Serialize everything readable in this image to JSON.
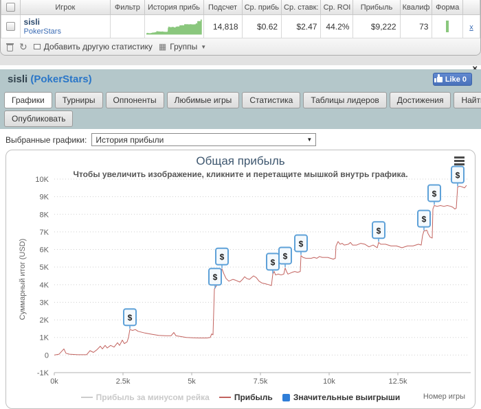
{
  "stats_table": {
    "headers": [
      "",
      "Игрок",
      "Фильтр",
      "История прибь",
      "Подсчет",
      "Ср. прибь",
      "Ср. ставк:",
      "Ср. ROI",
      "Прибыль",
      "Квалиф",
      "Форма",
      ""
    ],
    "row": {
      "player": "sisli",
      "site": "PokerStars",
      "count": "14,818",
      "avg_profit": "$0.62",
      "avg_stake": "$2.47",
      "avg_roi": "44.2%",
      "profit": "$9,222",
      "qualified": "73",
      "remove_label": "x"
    }
  },
  "toolbar": {
    "add_stat_label": "Добавить другую статистику",
    "groups_label": "Группы"
  },
  "icons": {
    "refresh": "↻",
    "groups": "▦",
    "caret_down": "▼",
    "close": "×"
  },
  "panel": {
    "player": "sisli",
    "site_paren": "(PokerStars)",
    "like_label": "Like 0",
    "active_tab": "Графики",
    "tabs_row1": [
      "Графики",
      "Турниры",
      "Оппоненты",
      "Любимые игры",
      "Статистика",
      "Таблицы лидеров",
      "Достижения",
      "Найти"
    ],
    "tabs_row2": [
      "Опубликовать"
    ],
    "select_label": "Выбранные графики:",
    "select_value": "История прибыли"
  },
  "sparkline": {
    "color": "#8ac77d"
  },
  "chart_data": {
    "type": "line",
    "title": "Общая прибыль",
    "subtitle": "Чтобы увеличить изображение, кликните и перетащите мышкой внутрь графика.",
    "x_axis": {
      "title": "Номер игры",
      "min": 0,
      "max": 15050,
      "ticks": [
        {
          "value": 0,
          "label": "0k"
        },
        {
          "value": 2500,
          "label": "2.5k"
        },
        {
          "value": 5000,
          "label": "5k"
        },
        {
          "value": 7500,
          "label": "7.5k"
        },
        {
          "value": 10000,
          "label": "10k"
        },
        {
          "value": 12500,
          "label": "12.5k"
        }
      ]
    },
    "y_axis": {
      "title": "Суммарный итог (USD)",
      "min": -1000,
      "max": 10000,
      "ticks": [
        {
          "value": -1000,
          "label": "-1K"
        },
        {
          "value": 0,
          "label": "0"
        },
        {
          "value": 1000,
          "label": "1K"
        },
        {
          "value": 2000,
          "label": "2K"
        },
        {
          "value": 3000,
          "label": "3K"
        },
        {
          "value": 4000,
          "label": "4K"
        },
        {
          "value": 5000,
          "label": "5K"
        },
        {
          "value": 6000,
          "label": "6K"
        },
        {
          "value": 7000,
          "label": "7K"
        },
        {
          "value": 8000,
          "label": "8K"
        },
        {
          "value": 9000,
          "label": "9K"
        },
        {
          "value": 10000,
          "label": "10K"
        }
      ]
    },
    "series": [
      {
        "name": "Прибыль",
        "color": "#c2625e",
        "points": [
          [
            0,
            0
          ],
          [
            175,
            50
          ],
          [
            350,
            350
          ],
          [
            425,
            100
          ],
          [
            550,
            50
          ],
          [
            850,
            20
          ],
          [
            1175,
            20
          ],
          [
            1300,
            250
          ],
          [
            1425,
            150
          ],
          [
            1550,
            300
          ],
          [
            1675,
            500
          ],
          [
            1750,
            350
          ],
          [
            1850,
            550
          ],
          [
            1925,
            400
          ],
          [
            2050,
            550
          ],
          [
            2175,
            450
          ],
          [
            2300,
            700
          ],
          [
            2375,
            550
          ],
          [
            2475,
            850
          ],
          [
            2550,
            650
          ],
          [
            2650,
            750
          ],
          [
            2700,
            1000
          ],
          [
            2750,
            1450
          ],
          [
            2850,
            1400
          ],
          [
            2950,
            1450
          ],
          [
            3050,
            1350
          ],
          [
            3300,
            1250
          ],
          [
            3550,
            1180
          ],
          [
            3800,
            1120
          ],
          [
            4050,
            1100
          ],
          [
            4250,
            1100
          ],
          [
            4350,
            1280
          ],
          [
            4425,
            1100
          ],
          [
            4600,
            1050
          ],
          [
            4800,
            1000
          ],
          [
            5050,
            980
          ],
          [
            5300,
            970
          ],
          [
            5550,
            970
          ],
          [
            5675,
            1000
          ],
          [
            5725,
            1200
          ],
          [
            5775,
            1150
          ],
          [
            5825,
            3750
          ],
          [
            5925,
            4000
          ],
          [
            6000,
            4300
          ],
          [
            6100,
            4900
          ],
          [
            6175,
            4600
          ],
          [
            6250,
            4350
          ],
          [
            6350,
            4200
          ],
          [
            6500,
            4300
          ],
          [
            6600,
            4250
          ],
          [
            6750,
            4150
          ],
          [
            6850,
            4300
          ],
          [
            6925,
            4450
          ],
          [
            7000,
            4350
          ],
          [
            7100,
            4300
          ],
          [
            7250,
            4500
          ],
          [
            7350,
            4400
          ],
          [
            7450,
            4200
          ],
          [
            7550,
            4100
          ],
          [
            7675,
            4050
          ],
          [
            7800,
            4000
          ],
          [
            7900,
            3950
          ],
          [
            7950,
            4600
          ],
          [
            8000,
            4750
          ],
          [
            8050,
            4550
          ],
          [
            8150,
            4600
          ],
          [
            8250,
            4550
          ],
          [
            8350,
            4600
          ],
          [
            8400,
            4950
          ],
          [
            8450,
            4750
          ],
          [
            8500,
            4600
          ],
          [
            8650,
            4700
          ],
          [
            8750,
            4750
          ],
          [
            8850,
            4700
          ],
          [
            8950,
            4750
          ],
          [
            8975,
            5650
          ],
          [
            9050,
            5550
          ],
          [
            9150,
            5500
          ],
          [
            9350,
            5500
          ],
          [
            9450,
            5550
          ],
          [
            9550,
            5500
          ],
          [
            9650,
            5600
          ],
          [
            9750,
            5550
          ],
          [
            9950,
            5550
          ],
          [
            10150,
            5450
          ],
          [
            10225,
            5500
          ],
          [
            10250,
            6200
          ],
          [
            10325,
            6450
          ],
          [
            10400,
            6300
          ],
          [
            10475,
            6350
          ],
          [
            10550,
            6250
          ],
          [
            10700,
            6300
          ],
          [
            10775,
            6400
          ],
          [
            10850,
            6250
          ],
          [
            11000,
            6250
          ],
          [
            11150,
            6350
          ],
          [
            11300,
            6300
          ],
          [
            11450,
            6150
          ],
          [
            11600,
            6250
          ],
          [
            11750,
            6100
          ],
          [
            11800,
            6400
          ],
          [
            11875,
            6300
          ],
          [
            12050,
            6300
          ],
          [
            12250,
            6200
          ],
          [
            12450,
            6200
          ],
          [
            12650,
            6100
          ],
          [
            12850,
            6200
          ],
          [
            13050,
            6200
          ],
          [
            13250,
            6300
          ],
          [
            13350,
            6250
          ],
          [
            13400,
            6800
          ],
          [
            13450,
            7050
          ],
          [
            13550,
            7100
          ],
          [
            13600,
            6900
          ],
          [
            13675,
            6700
          ],
          [
            13750,
            6650
          ],
          [
            13775,
            8300
          ],
          [
            13825,
            8500
          ],
          [
            13925,
            8450
          ],
          [
            14050,
            8500
          ],
          [
            14175,
            8450
          ],
          [
            14300,
            8500
          ],
          [
            14425,
            8450
          ],
          [
            14500,
            8400
          ],
          [
            14575,
            8300
          ],
          [
            14625,
            8350
          ],
          [
            14675,
            9550
          ],
          [
            14750,
            9600
          ],
          [
            14850,
            9550
          ],
          [
            14925,
            9500
          ],
          [
            15000,
            9650
          ]
        ]
      }
    ],
    "markers": {
      "name": "Значительные выигрыши",
      "symbol": "$",
      "color": "#5ea1d8",
      "fill": "#f4f9fd",
      "points": [
        [
          2750,
          1450
        ],
        [
          5850,
          3750
        ],
        [
          6100,
          4900
        ],
        [
          7950,
          4600
        ],
        [
          8400,
          4950
        ],
        [
          8975,
          5650
        ],
        [
          11800,
          6400
        ],
        [
          13450,
          7050
        ],
        [
          13825,
          8500
        ],
        [
          14675,
          9550
        ]
      ]
    },
    "legend": [
      {
        "label": "Прибыль за минусом рейка",
        "swatch": "line",
        "color": "#cccccc",
        "text_color": "#c9c9c9"
      },
      {
        "label": "Прибыль",
        "swatch": "line",
        "color": "#c2625e",
        "text_color": "#333333"
      },
      {
        "label": "Значительные выигрыши",
        "swatch": "square",
        "color": "#2f7ed8",
        "text_color": "#333333"
      }
    ],
    "grid": "horizontal-dotted",
    "legend_position": "bottom-center"
  }
}
